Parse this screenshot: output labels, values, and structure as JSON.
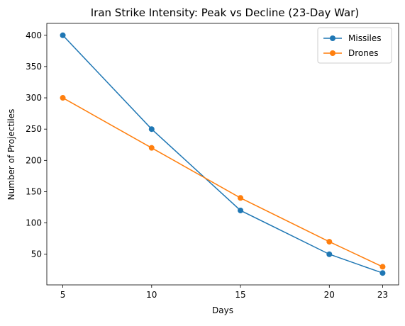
{
  "chart_data": {
    "type": "line",
    "title": "Iran Strike Intensity: Peak vs Decline (23-Day War)",
    "xlabel": "Days",
    "ylabel": "Number of Projectiles",
    "x": [
      5,
      10,
      15,
      20,
      23
    ],
    "x_ticks": [
      "5",
      "10",
      "15",
      "20",
      "23"
    ],
    "y_ticks": [
      "50",
      "100",
      "150",
      "200",
      "250",
      "300",
      "350",
      "400"
    ],
    "xlim": [
      4.1,
      23.9
    ],
    "ylim": [
      1,
      419
    ],
    "grid": false,
    "legend_position": "top-right",
    "series": [
      {
        "name": "Missiles",
        "values": [
          400,
          250,
          120,
          50,
          20
        ],
        "color": "#1f77b4",
        "marker": "circle"
      },
      {
        "name": "Drones",
        "values": [
          300,
          220,
          140,
          70,
          30
        ],
        "color": "#ff7f0e",
        "marker": "circle"
      }
    ]
  }
}
